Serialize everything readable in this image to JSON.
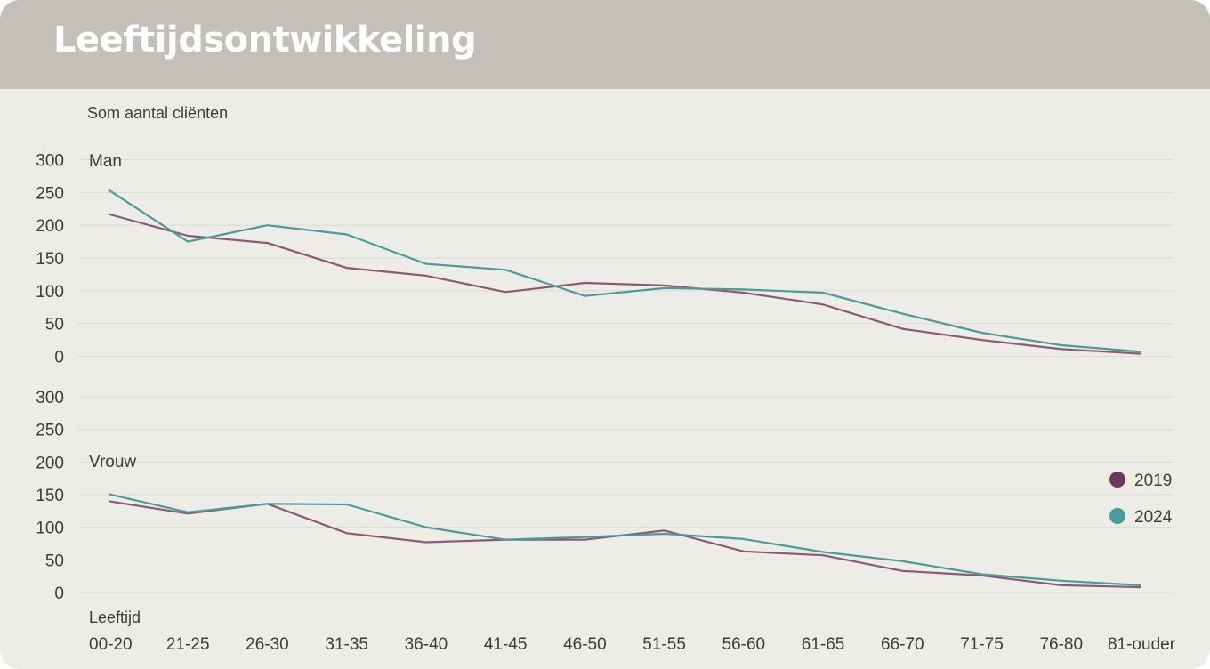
{
  "header": {
    "title": "Leeftijdsontwikkeling"
  },
  "colors": {
    "2019": "#8a5a76",
    "2024": "#4a9c9a",
    "legend_2019": "#6b3a5a",
    "legend_2024": "#4a9c9a",
    "header_bg": "#c4c0b8",
    "card_bg": "#edece7",
    "grid": "#dcdbd6"
  },
  "chart_data": {
    "type": "line",
    "title": "Leeftijdsontwikkeling",
    "ylabel": "Som aantal cliënten",
    "xlabel": "Leeftijd",
    "categories": [
      "00-20",
      "21-25",
      "26-30",
      "31-35",
      "36-40",
      "41-45",
      "46-50",
      "51-55",
      "56-60",
      "61-65",
      "66-70",
      "71-75",
      "76-80",
      "81-ouder"
    ],
    "yticks": [
      0,
      50,
      100,
      150,
      200,
      250,
      300
    ],
    "ylim": [
      0,
      300
    ],
    "grid": true,
    "legend": {
      "position": "right",
      "entries": [
        "2019",
        "2024"
      ]
    },
    "panels": [
      {
        "label": "Man",
        "series": [
          {
            "name": "2019",
            "values": [
              217,
              184,
              173,
              135,
              123,
              98,
              112,
              108,
              97,
              79,
              42,
              25,
              11,
              4
            ]
          },
          {
            "name": "2024",
            "values": [
              254,
              175,
              200,
              186,
              141,
              132,
              92,
              104,
              102,
              97,
              65,
              36,
              17,
              7
            ]
          }
        ]
      },
      {
        "label": "Vrouw",
        "series": [
          {
            "name": "2019",
            "values": [
              140,
              121,
              136,
              91,
              77,
              81,
              81,
              95,
              63,
              57,
              33,
              26,
              11,
              8
            ]
          },
          {
            "name": "2024",
            "values": [
              151,
              123,
              136,
              135,
              100,
              81,
              85,
              90,
              82,
              62,
              48,
              28,
              18,
              11
            ]
          }
        ]
      }
    ]
  }
}
